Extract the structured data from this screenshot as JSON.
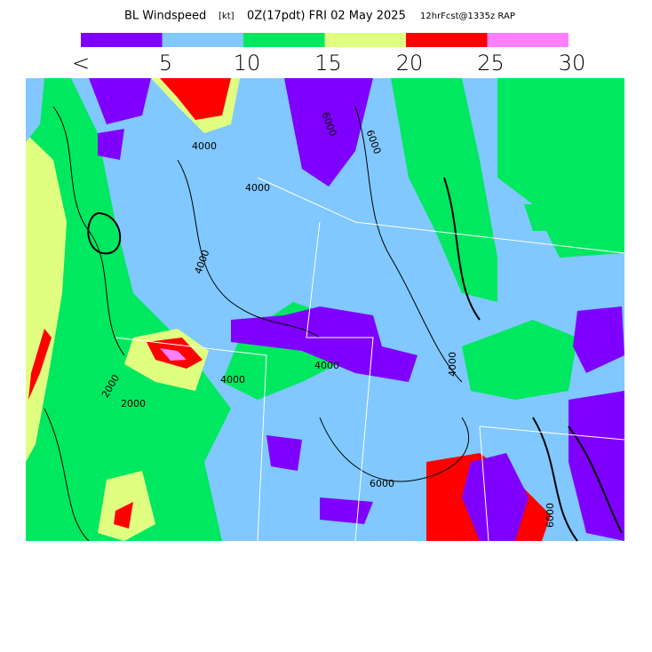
{
  "header": {
    "title": "BL Windspeed",
    "units": "[kt]",
    "valid": "0Z(17pdt) FRI 02 May 2025",
    "forecast": "12hrFcst@1335z RAP"
  },
  "colorbar": {
    "colors": [
      "#8000ff",
      "#80c8ff",
      "#00e860",
      "#e0ff80",
      "#ff0000",
      "#ff80ff"
    ],
    "labels": [
      "<",
      "5",
      "10",
      "15",
      "20",
      "25",
      "30"
    ]
  },
  "contour_labels": [
    "4000",
    "4000",
    "4000",
    "6000",
    "6000",
    "2000",
    "2000",
    "4000",
    "4000",
    "6000",
    "6000",
    "4000"
  ]
}
